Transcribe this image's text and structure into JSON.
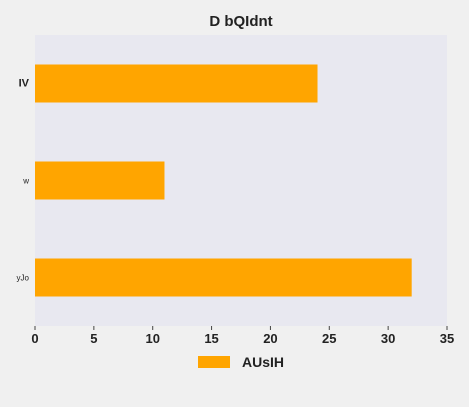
{
  "chart_data": {
    "type": "bar",
    "orientation": "horizontal",
    "title": "D bQIdnt",
    "categories": [
      "IV",
      "w",
      "yJo"
    ],
    "series": [
      {
        "name": "AUsIH",
        "values": [
          24,
          11,
          32
        ]
      }
    ],
    "xlim": [
      0,
      35
    ],
    "xticks": [
      0,
      5,
      10,
      15,
      20,
      25,
      30,
      35
    ],
    "grid": false,
    "legend": "bottom-center",
    "colors": {
      "bar": "#ffa500",
      "plot_bg": "#e8e8f0",
      "page_bg": "#f0f0f0",
      "text": "#222222"
    }
  }
}
